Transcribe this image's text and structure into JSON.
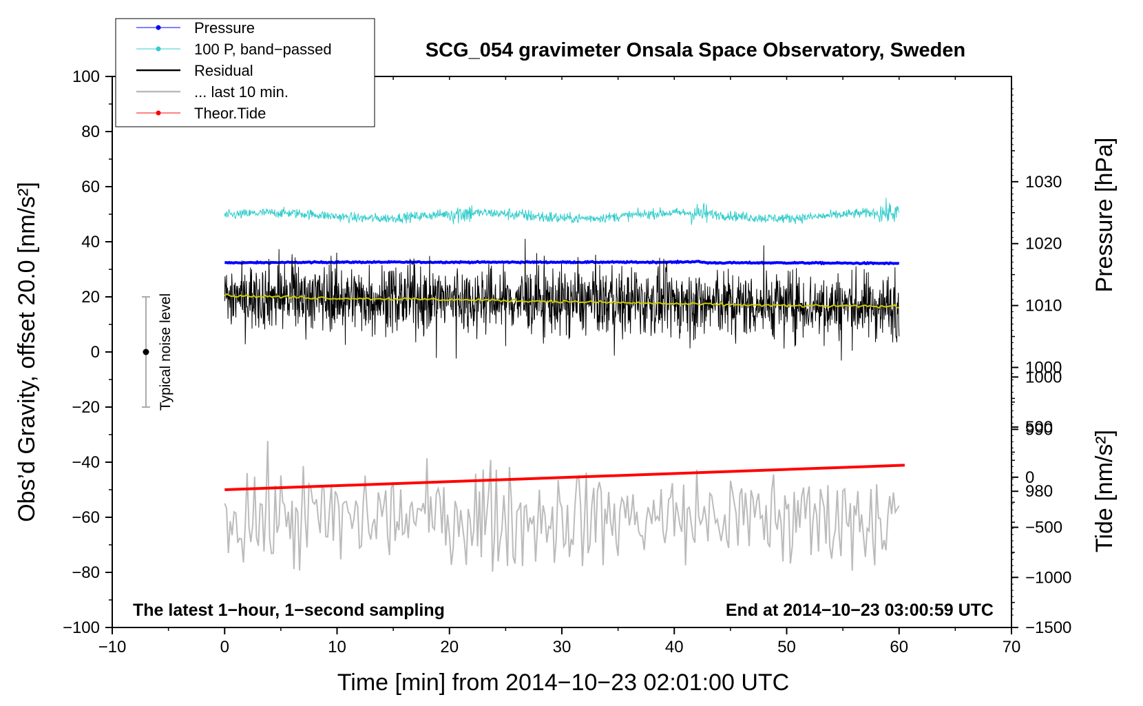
{
  "chart_data": {
    "type": "line",
    "title": "SCG_054 gravimeter Onsala Space Observatory, Sweden",
    "xlabel": "Time [min] from 2014−10−23 02:01:00 UTC",
    "ylabel_left": "Obs’d Gravity, offset 20.0 [nm/s²]",
    "ylabel_right_pressure": "Pressure [hPa]",
    "ylabel_right_tide": "Tide [nm/s²]",
    "xlim": [
      -10,
      70
    ],
    "ylim_left": [
      -100,
      100
    ],
    "ylim_pressure": [
      958,
      1047
    ],
    "ylim_tide": [
      -1500,
      4000
    ],
    "x_ticks": [
      {
        "value": -10,
        "label": "−10"
      },
      {
        "value": 0,
        "label": "0"
      },
      {
        "value": 10,
        "label": "10"
      },
      {
        "value": 20,
        "label": "20"
      },
      {
        "value": 30,
        "label": "30"
      },
      {
        "value": 40,
        "label": "40"
      },
      {
        "value": 50,
        "label": "50"
      },
      {
        "value": 60,
        "label": "60"
      },
      {
        "value": 70,
        "label": "70"
      }
    ],
    "y_ticks_left": [
      {
        "value": 100,
        "label": "100"
      },
      {
        "value": 80,
        "label": "80"
      },
      {
        "value": 60,
        "label": "60"
      },
      {
        "value": 40,
        "label": "40"
      },
      {
        "value": 20,
        "label": "20"
      },
      {
        "value": 0,
        "label": "0"
      },
      {
        "value": -20,
        "label": "−20"
      },
      {
        "value": -40,
        "label": "−40"
      },
      {
        "value": -60,
        "label": "−60"
      },
      {
        "value": -80,
        "label": "−80"
      },
      {
        "value": -100,
        "label": "−100"
      }
    ],
    "y_ticks_pressure": [
      {
        "value": 1030,
        "label": "1030"
      },
      {
        "value": 1020,
        "label": "1020"
      },
      {
        "value": 1010,
        "label": "1010"
      },
      {
        "value": 1000,
        "label": "1000"
      },
      {
        "value": 990,
        "label": "990"
      },
      {
        "value": 980,
        "label": "980"
      }
    ],
    "y_ticks_tide": [
      {
        "value": 1000,
        "label": "1000"
      },
      {
        "value": 500,
        "label": "500"
      },
      {
        "value": 0,
        "label": "0"
      },
      {
        "value": -500,
        "label": "−500"
      },
      {
        "value": -1000,
        "label": "−1000"
      },
      {
        "value": -1500,
        "label": "−1500"
      }
    ],
    "series": [
      {
        "name": "Pressure",
        "color": "#0000ff",
        "axis": "pressure",
        "x": [
          0,
          10,
          20,
          30,
          40,
          42,
          43,
          50,
          60
        ],
        "values": [
          1016.9,
          1017.0,
          1017.0,
          1017.0,
          1017.0,
          1017.1,
          1016.9,
          1016.9,
          1016.8
        ]
      },
      {
        "name": "100 P, band−passed",
        "color": "#33cccc",
        "axis": "left",
        "baseline": 49.5,
        "noise_amplitude": 1.5,
        "x": [
          0,
          60
        ]
      },
      {
        "name": "Residual",
        "color": "#000000",
        "axis": "left",
        "baseline_start": 20.5,
        "baseline_end": 16.5,
        "noise_amplitude": 8,
        "x": [
          0,
          60
        ]
      },
      {
        "name": "Residual smoothed",
        "color": "#cccc00",
        "axis": "left",
        "x": [
          0,
          10,
          20,
          30,
          40,
          50,
          60
        ],
        "values": [
          20.5,
          19.5,
          19.0,
          18.3,
          17.5,
          16.8,
          16.5
        ]
      },
      {
        "name": "... last 10 min.",
        "color": "#bbbbbb",
        "axis": "left",
        "baseline": -60,
        "noise_amplitude": 9,
        "x": [
          0,
          60
        ]
      },
      {
        "name": "Theor.Tide",
        "color": "#ff0000",
        "axis": "tide",
        "x": [
          0,
          60.5
        ],
        "values": [
          -125,
          120
        ]
      }
    ],
    "legend": [
      {
        "label": "Pressure",
        "color": "#0000ff",
        "marker": "dot",
        "width": 1
      },
      {
        "label": "100 P, band−passed",
        "color": "#33cccc",
        "marker": "dot",
        "width": 1
      },
      {
        "label": "Residual",
        "color": "#000000",
        "marker": "none",
        "width": 2.5
      },
      {
        "label": "... last 10 min.",
        "color": "#bbbbbb",
        "marker": "none",
        "width": 2.5
      },
      {
        "label": "Theor.Tide",
        "color": "#ff0000",
        "marker": "dot",
        "width": 1
      }
    ],
    "noise_indicator": {
      "label": "Typical noise level",
      "x": -7,
      "center": 0,
      "low": -20,
      "high": 20
    },
    "annotations": {
      "left": "The latest 1−hour, 1−second sampling",
      "right": "End at 2014−10−23 03:00:59 UTC"
    }
  }
}
